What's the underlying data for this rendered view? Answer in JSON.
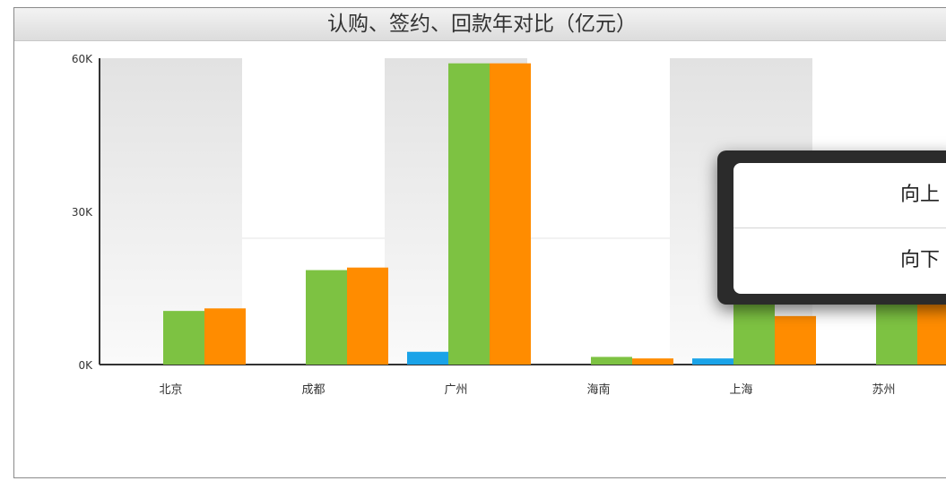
{
  "chart_data": {
    "type": "bar",
    "title": "认购、签约、回款年对比（亿元）",
    "categories": [
      "北京",
      "成都",
      "广州",
      "海南",
      "上海",
      "苏州"
    ],
    "series": [
      {
        "values": [
          0,
          0,
          2500,
          0,
          1200,
          0
        ],
        "color": "#1aa3e8"
      },
      {
        "values": [
          10500,
          18500,
          59000,
          1500,
          20000,
          20000
        ],
        "color": "#7dc242"
      },
      {
        "values": [
          11000,
          19000,
          59000,
          1200,
          9500,
          18500
        ],
        "color": "#ff8c00"
      }
    ],
    "ylim": [
      0,
      60000
    ],
    "yticks": [
      "0K",
      "30K",
      "60K"
    ],
    "grid": false
  },
  "popup": {
    "items": [
      "向上",
      "向下"
    ]
  }
}
